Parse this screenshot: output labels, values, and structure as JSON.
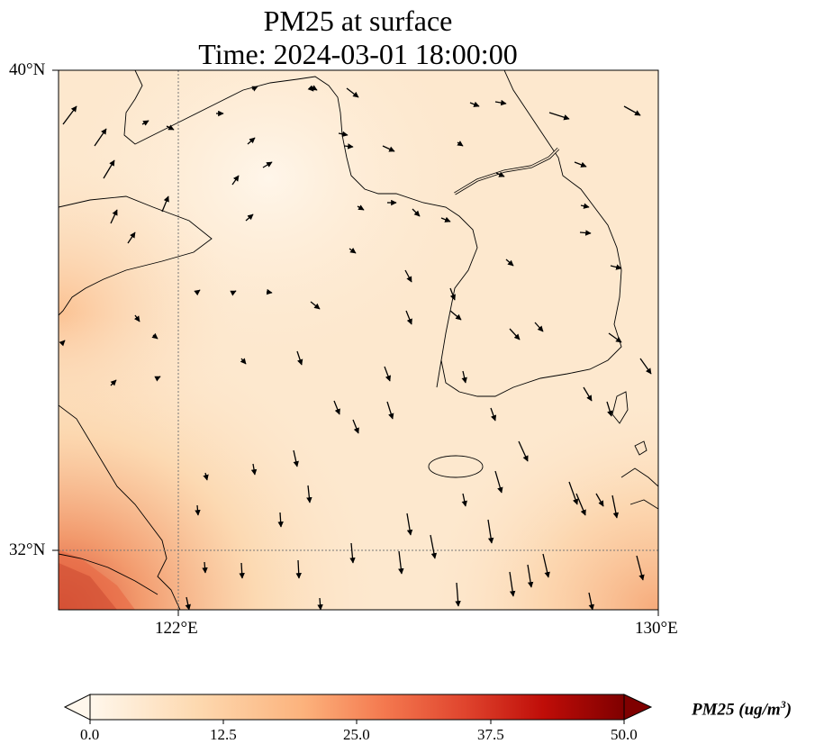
{
  "title": {
    "line1": "PM25 at surface",
    "line2": "Time: 2024-03-01 18:00:00"
  },
  "map": {
    "lat_labels": [
      "40°N",
      "32°N"
    ],
    "lon_labels": [
      "122°E",
      "130°E"
    ],
    "lon_range": [
      120,
      130
    ],
    "lat_range": [
      31,
      40
    ],
    "gridlines": "dotted",
    "overlay": "wind vectors",
    "colormap": "OrRd"
  },
  "colorbar": {
    "title_text": "PM25 (ug/m",
    "title_sup": "3",
    "title_close": ")",
    "ticks": [
      "0.0",
      "12.5",
      "25.0",
      "37.5",
      "50.0"
    ],
    "range": [
      0,
      50
    ],
    "extend": "both"
  }
}
